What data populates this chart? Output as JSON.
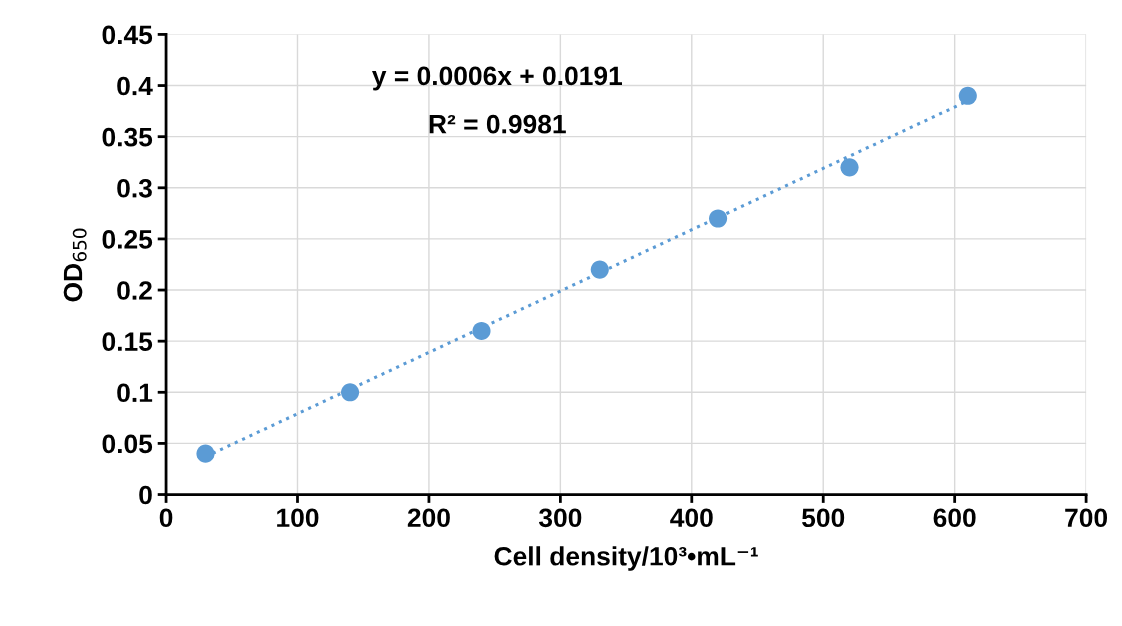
{
  "chart_data": {
    "type": "scatter",
    "xlabel": "Cell density/10³•mL⁻¹",
    "ylabel": "OD$_{650}$",
    "annotations": [
      "y = 0.0006x + 0.0191",
      "R² = 0.9981"
    ],
    "series": [
      {
        "color": "#5b9bd5",
        "marker": "circle",
        "x": [
          30,
          140,
          240,
          330,
          420,
          520,
          610
        ],
        "values": [
          0.04,
          0.1,
          0.16,
          0.22,
          0.27,
          0.32,
          0.39
        ]
      },
      {
        "type": "line",
        "color": "#5b9bd5",
        "line_style": "dotted",
        "x": [
          30,
          610
        ],
        "values": [
          0.037,
          0.385
        ]
      }
    ],
    "xlim": [
      0,
      700
    ],
    "xticks": [
      0,
      100,
      200,
      300,
      400,
      500,
      600,
      700
    ],
    "ylim": [
      0,
      0.45
    ],
    "yticks": [
      0,
      0.05,
      0.1,
      0.15,
      0.2,
      0.25,
      0.3,
      0.35,
      0.4,
      0.45
    ],
    "grid": true
  }
}
